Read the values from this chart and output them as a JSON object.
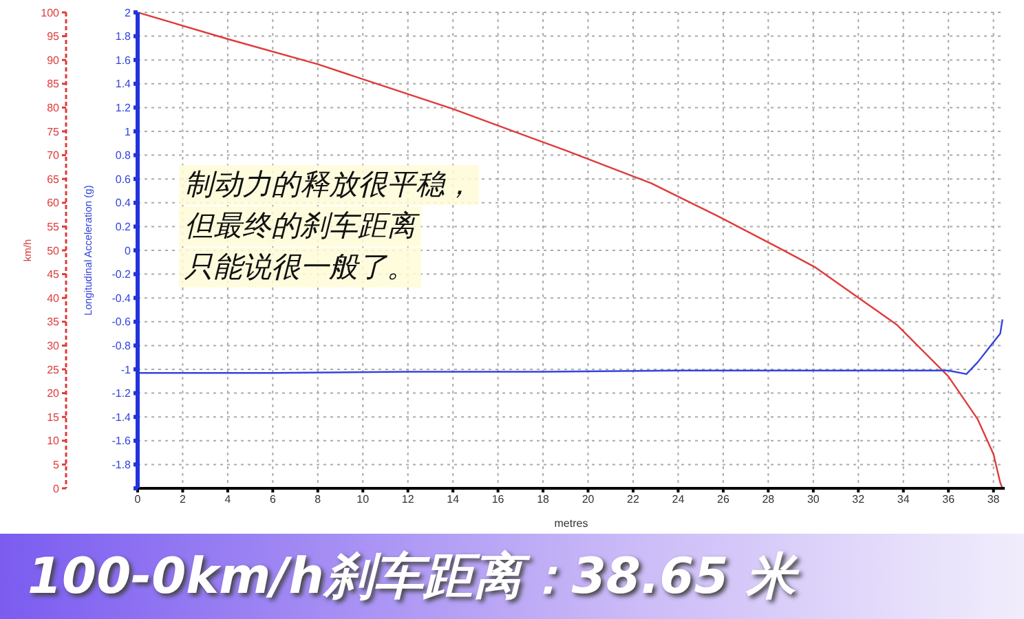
{
  "chart_data": {
    "type": "line",
    "title": "100-0km/h刹车距离：38.65 米",
    "xlabel": "metres",
    "ylabel": "Longitudinal Acceleration (g)",
    "y2label": "km/h",
    "annotations": [
      "制动力的释放很平稳，",
      "但最终的刹车距离",
      "只能说很一般了。"
    ],
    "xlim": [
      0,
      38.5
    ],
    "xticks": [
      0,
      2,
      4,
      6,
      8,
      10,
      12,
      14,
      16,
      18,
      20,
      22,
      24,
      26,
      28,
      30,
      32,
      34,
      36,
      38
    ],
    "ylim": [
      -2,
      2
    ],
    "yticks": [
      {
        "value": -2,
        "label": null
      },
      -1.8,
      -1.6,
      -1.4,
      -1.2,
      -1,
      -0.8,
      -0.6,
      -0.4,
      -0.2,
      0,
      0.2,
      0.4,
      0.6,
      0.8,
      1,
      1.2,
      1.4,
      1.6,
      1.8,
      2
    ],
    "y2lim": [
      0,
      100
    ],
    "y2ticks": [
      0,
      5,
      10,
      15,
      20,
      25,
      30,
      35,
      40,
      45,
      50,
      55,
      60,
      65,
      70,
      75,
      80,
      85,
      90,
      95,
      100
    ],
    "grid": true,
    "marker": "none",
    "line_style": "solid",
    "series": [
      {
        "color": "#e03a3a",
        "axis": "y2",
        "x": [
          0,
          4,
          8,
          14,
          19,
          22.8,
          25.8,
          28.6,
          30.1,
          33.7,
          36,
          37.3,
          38,
          38.3,
          38.4
        ],
        "values": [
          100,
          94.4,
          89.1,
          79.7,
          71,
          64.1,
          57.1,
          50.2,
          46.4,
          34.4,
          23.5,
          14.5,
          7.2,
          1.2,
          0
        ]
      },
      {
        "color": "#3344dd",
        "axis": "y",
        "x": [
          0,
          6,
          12,
          18,
          24,
          30,
          36,
          36.8,
          37.3,
          37.8,
          38.3,
          38.4
        ],
        "values": [
          -1.03,
          -1.03,
          -1.02,
          -1.02,
          -1.01,
          -1.01,
          -1.01,
          -1.04,
          -0.94,
          -0.82,
          -0.7,
          -0.58
        ]
      }
    ]
  }
}
